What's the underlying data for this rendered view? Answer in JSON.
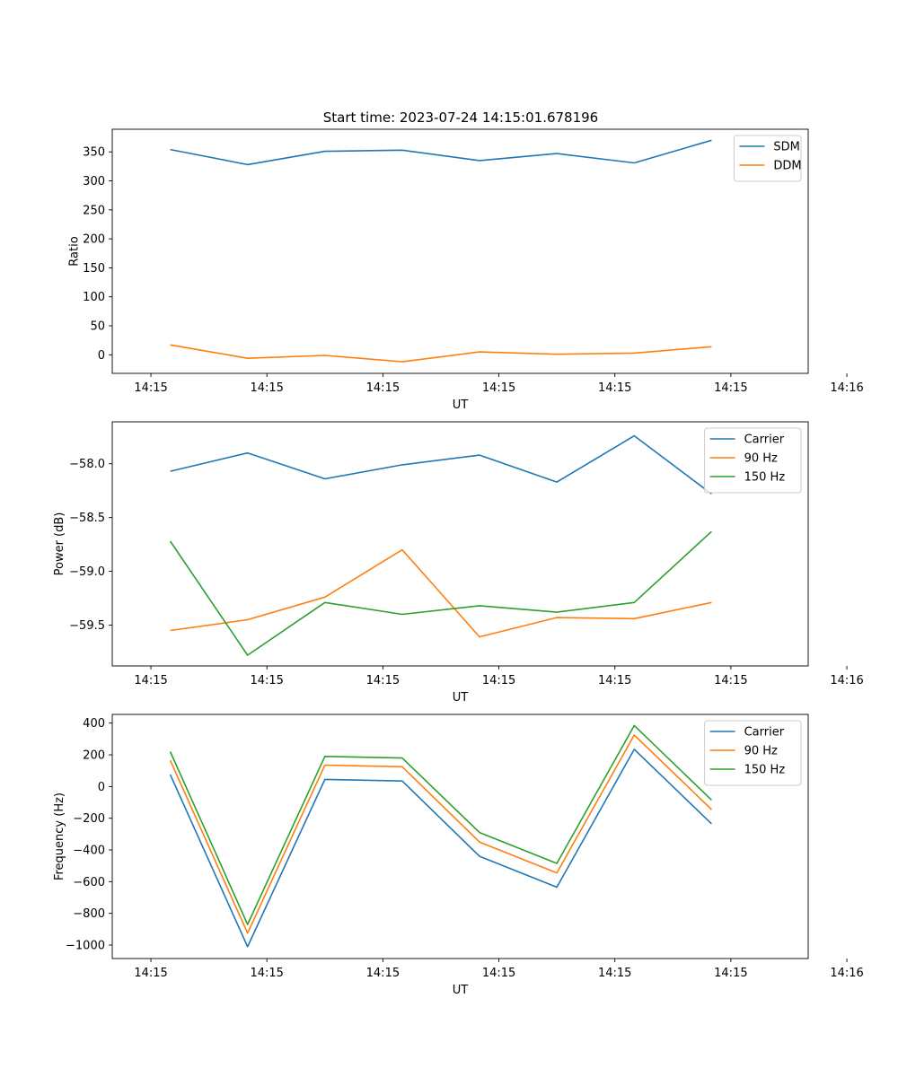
{
  "figure": {
    "title": "Start time: 2023-07-24 14:15:01.678196"
  },
  "colors": {
    "blue": "#1f77b4",
    "orange": "#ff7f0e",
    "green": "#2ca02c"
  },
  "chart_data": [
    {
      "type": "line",
      "title": "Start time: 2023-07-24 14:15:01.678196",
      "xlabel": "UT",
      "ylabel": "Ratio",
      "xlim": [
        -0.5,
        8.5
      ],
      "x": [
        0.25,
        1.25,
        2.25,
        3.25,
        4.25,
        5.25,
        6.25,
        7.25
      ],
      "xticks": [
        0,
        1.5,
        3,
        4.5,
        6,
        7.5,
        9
      ],
      "xtick_labels": [
        "14:15",
        "14:15",
        "14:15",
        "14:15",
        "14:15",
        "14:15",
        "14:16"
      ],
      "ylim": [
        -32,
        389
      ],
      "yticks": [
        0,
        50,
        100,
        150,
        200,
        250,
        300,
        350
      ],
      "ytick_labels": [
        "0",
        "50",
        "100",
        "150",
        "200",
        "250",
        "300",
        "350"
      ],
      "legend_position": "top-right",
      "series": [
        {
          "name": "SDM",
          "color": "#1f77b4",
          "values": [
            354,
            328,
            351,
            353,
            335,
            347,
            331,
            370
          ]
        },
        {
          "name": "DDM",
          "color": "#ff7f0e",
          "values": [
            17,
            -6,
            -1,
            -12,
            5,
            1,
            3,
            14
          ]
        }
      ]
    },
    {
      "type": "line",
      "title": "",
      "xlabel": "UT",
      "ylabel": "Power (dB)",
      "xlim": [
        -0.5,
        8.5
      ],
      "x": [
        0.25,
        1.25,
        2.25,
        3.25,
        4.25,
        5.25,
        6.25,
        7.25
      ],
      "xticks": [
        0,
        1.5,
        3,
        4.5,
        6,
        7.5,
        9
      ],
      "xtick_labels": [
        "14:15",
        "14:15",
        "14:15",
        "14:15",
        "14:15",
        "14:15",
        "14:16"
      ],
      "ylim": [
        -59.88,
        -57.61
      ],
      "yticks": [
        -59.5,
        -59.0,
        -58.5,
        -58.0
      ],
      "ytick_labels": [
        "−59.5",
        "−59.0",
        "−58.5",
        "−58.0"
      ],
      "legend_position": "top-right",
      "series": [
        {
          "name": "Carrier",
          "color": "#1f77b4",
          "values": [
            -58.07,
            -57.9,
            -58.14,
            -58.01,
            -57.92,
            -58.17,
            -57.74,
            -58.28
          ]
        },
        {
          "name": "90 Hz",
          "color": "#ff7f0e",
          "values": [
            -59.55,
            -59.45,
            -59.24,
            -58.8,
            -59.61,
            -59.43,
            -59.44,
            -59.29
          ]
        },
        {
          "name": "150 Hz",
          "color": "#2ca02c",
          "values": [
            -58.72,
            -59.78,
            -59.29,
            -59.4,
            -59.32,
            -59.38,
            -59.29,
            -58.63
          ]
        }
      ]
    },
    {
      "type": "line",
      "title": "",
      "xlabel": "UT",
      "ylabel": "Frequency (Hz)",
      "xlim": [
        -0.5,
        8.5
      ],
      "x": [
        0.25,
        1.25,
        2.25,
        3.25,
        4.25,
        5.25,
        6.25,
        7.25
      ],
      "xticks": [
        0,
        1.5,
        3,
        4.5,
        6,
        7.5,
        9
      ],
      "xtick_labels": [
        "14:15",
        "14:15",
        "14:15",
        "14:15",
        "14:15",
        "14:15",
        "14:16"
      ],
      "ylim": [
        -1085,
        455
      ],
      "yticks": [
        -1000,
        -800,
        -600,
        -400,
        -200,
        0,
        200,
        400
      ],
      "ytick_labels": [
        "−1000",
        "−800",
        "−600",
        "−400",
        "−200",
        "0",
        "200",
        "400"
      ],
      "legend_position": "top-right",
      "series": [
        {
          "name": "Carrier",
          "color": "#1f77b4",
          "values": [
            75,
            -1010,
            45,
            35,
            -440,
            -635,
            235,
            -235
          ]
        },
        {
          "name": "90 Hz",
          "color": "#ff7f0e",
          "values": [
            165,
            -925,
            135,
            125,
            -350,
            -545,
            325,
            -145
          ]
        },
        {
          "name": "150 Hz",
          "color": "#2ca02c",
          "values": [
            220,
            -870,
            190,
            180,
            -290,
            -485,
            385,
            -85
          ]
        }
      ]
    }
  ]
}
